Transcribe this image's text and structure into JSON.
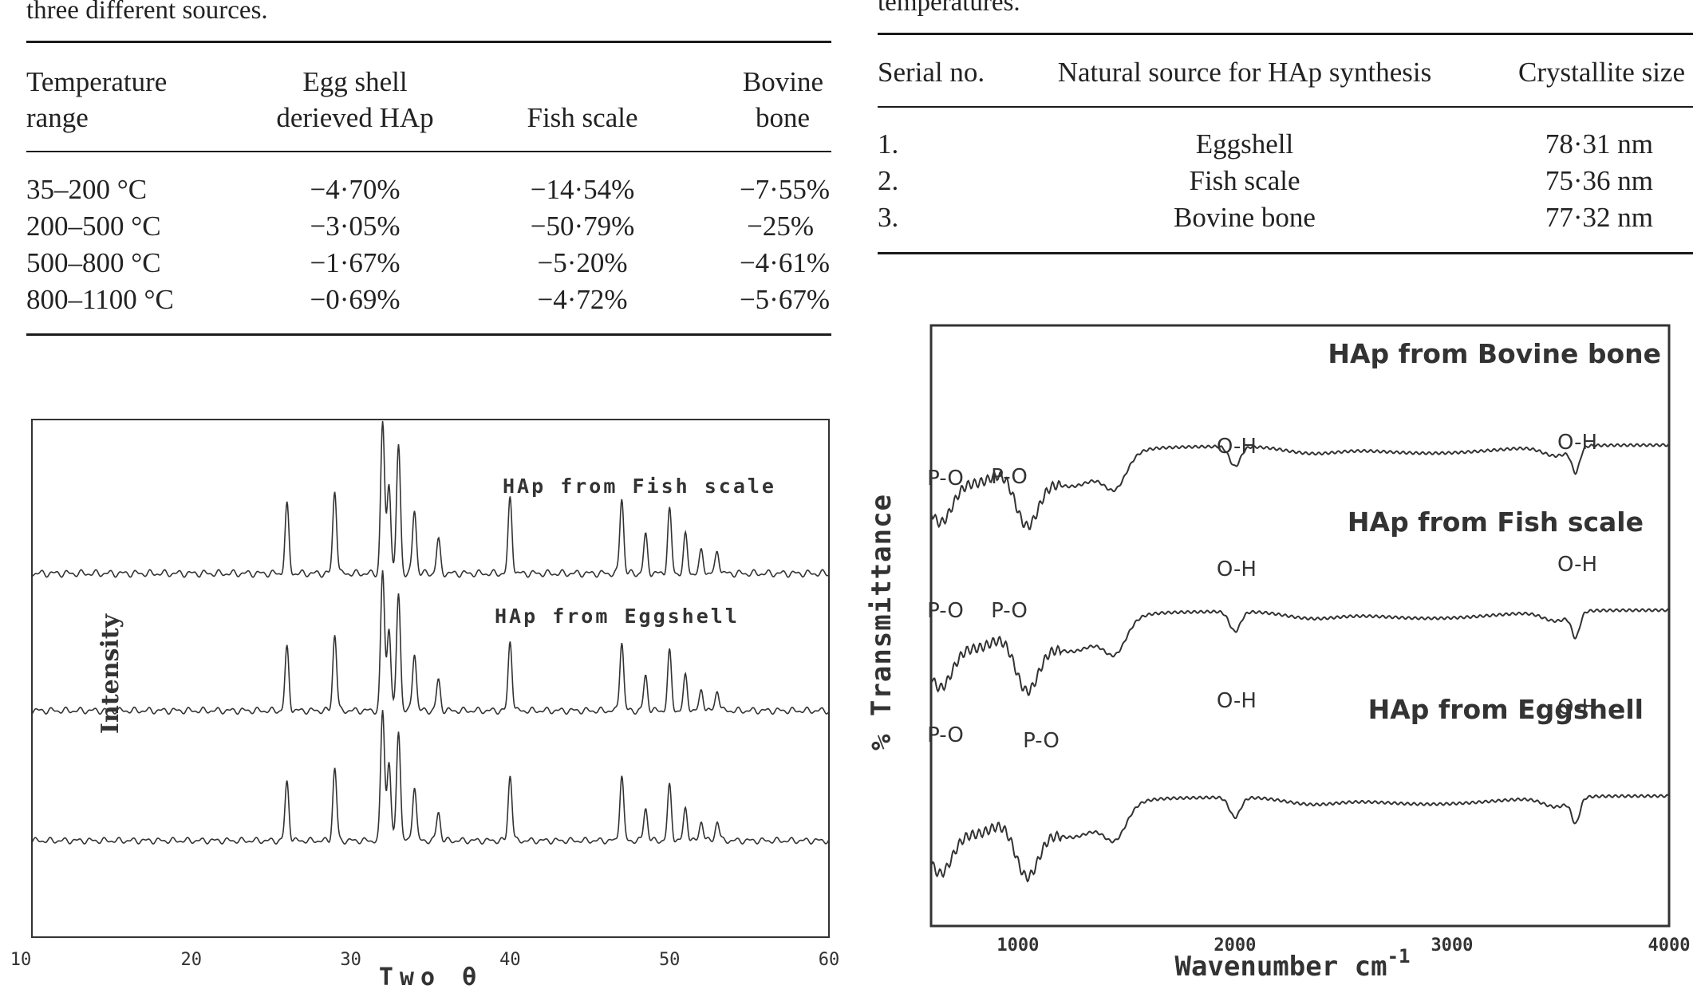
{
  "left_table": {
    "caption_tail": "three different sources.",
    "headers": {
      "col1_line1": "Temperature",
      "col1_line2": "range",
      "col2_line1": "Egg shell",
      "col2_line2": "derieved HAp",
      "col3": "Fish scale",
      "col4_line1": "Bovine",
      "col4_line2": "bone"
    },
    "rows": [
      [
        "35–200 °C",
        "−4·70%",
        "−14·54%",
        "−7·55%"
      ],
      [
        "200–500 °C",
        "−3·05%",
        "−50·79%",
        "−25%"
      ],
      [
        "500–800 °C",
        "−1·67%",
        "−5·20%",
        "−4·61%"
      ],
      [
        "800–1100 °C",
        "−0·69%",
        "−4·72%",
        "−5·67%"
      ]
    ]
  },
  "right_table": {
    "caption_tail": "temperatures.",
    "headers": [
      "Serial no.",
      "Natural source for HAp synthesis",
      "Crystallite size"
    ],
    "rows": [
      [
        "1.",
        "Eggshell",
        "78·31 nm"
      ],
      [
        "2.",
        "Fish scale",
        "75·36 nm"
      ],
      [
        "3.",
        "Bovine bone",
        "77·32 nm"
      ]
    ]
  },
  "chart_data": [
    {
      "type": "line",
      "title": "",
      "xlabel": "Two θ",
      "ylabel": "Intensity",
      "xlim": [
        10,
        60
      ],
      "x_ticks": [
        "10",
        "20",
        "30",
        "40",
        "50",
        "60"
      ],
      "grid": false,
      "series": [
        {
          "name": "HAp from Bovine bone",
          "peaks_two_theta": [
            26,
            29,
            32,
            32.4,
            33,
            34,
            35.5,
            40,
            47,
            48.5,
            50,
            51,
            52,
            53
          ]
        },
        {
          "name": "HAp from Fish scale",
          "peaks_two_theta": [
            26,
            29,
            32,
            32.4,
            33,
            34,
            35.5,
            40,
            47,
            48.5,
            50,
            51,
            52,
            53
          ]
        },
        {
          "name": "HAp from Eggshell",
          "peaks_two_theta": [
            26,
            29,
            32,
            32.4,
            33,
            34,
            35.5,
            40,
            47,
            48.5,
            50,
            51,
            52,
            53
          ]
        }
      ]
    },
    {
      "type": "line",
      "title": "",
      "xlabel": "Wavenumber cm",
      "xlabel_sup": "-1",
      "ylabel": "% Transmittance",
      "xlim": [
        600,
        4000
      ],
      "x_ticks": [
        "1000",
        "2000",
        "3000",
        "4000"
      ],
      "grid": false,
      "series": [
        {
          "name": "HAp from Bovine bone",
          "bands": [
            {
              "label": "P-O",
              "x": 600
            },
            {
              "label": "P-O",
              "x": 1030
            },
            {
              "label": "O-H",
              "x": 2000
            },
            {
              "label": "O-H",
              "x": 3570
            }
          ]
        },
        {
          "name": "HAp from Fish scale",
          "bands": [
            {
              "label": "P-O",
              "x": 620
            },
            {
              "label": "P-O",
              "x": 1030
            },
            {
              "label": "O-H",
              "x": 2000
            },
            {
              "label": "O-H",
              "x": 3570
            }
          ]
        },
        {
          "name": "HAp from Eggshell",
          "bands": [
            {
              "label": "P-O",
              "x": 600
            },
            {
              "label": "P-O",
              "x": 1040
            },
            {
              "label": "O-H",
              "x": 2000
            },
            {
              "label": "O-H",
              "x": 3570
            }
          ]
        }
      ]
    }
  ]
}
